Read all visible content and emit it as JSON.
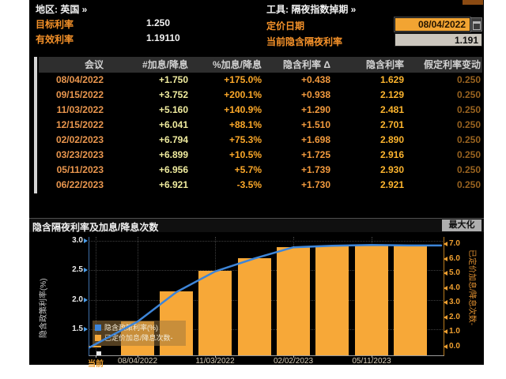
{
  "header": {
    "region": "地区: 英国 »",
    "tool": "工具: 隔夜指数掉期 »",
    "target_rate_label": "目标利率",
    "target_rate_value": "1.250",
    "effective_rate_label": "有效利率",
    "effective_rate_value": "1.19110",
    "pricing_date_label": "定价日期",
    "pricing_date_value": "08/04/2022",
    "calendar_icon": "calendar-icon",
    "current_implied_label": "当前隐含隔夜利率",
    "current_implied_value": "1.191"
  },
  "table": {
    "columns": [
      "会议",
      "#加息/降息",
      "%加息/降息",
      "隐含利率 Δ",
      "隐含利率",
      "假定利率变动"
    ],
    "rows": [
      [
        "08/04/2022",
        "+1.750",
        "+175.0%",
        "+0.438",
        "1.629",
        "0.250"
      ],
      [
        "09/15/2022",
        "+3.752",
        "+200.1%",
        "+0.938",
        "2.129",
        "0.250"
      ],
      [
        "11/03/2022",
        "+5.160",
        "+140.9%",
        "+1.290",
        "2.481",
        "0.250"
      ],
      [
        "12/15/2022",
        "+6.041",
        "+88.1%",
        "+1.510",
        "2.701",
        "0.250"
      ],
      [
        "02/02/2023",
        "+6.794",
        "+75.3%",
        "+1.698",
        "2.890",
        "0.250"
      ],
      [
        "03/23/2023",
        "+6.899",
        "+10.5%",
        "+1.725",
        "2.916",
        "0.250"
      ],
      [
        "05/11/2023",
        "+6.956",
        "+5.7%",
        "+1.739",
        "2.930",
        "0.250"
      ],
      [
        "06/22/2023",
        "+6.921",
        "-3.5%",
        "+1.730",
        "2.921",
        "0.250"
      ]
    ]
  },
  "chart": {
    "title": "隐含隔夜利率及加息/降息次数",
    "maximize_label": "最大化",
    "left_axis_label": "隐含政策利率(%)",
    "right_axis_label": "已定价加息/降息次数-",
    "legend": [
      {
        "label": "隐含政策利率(%)",
        "color": "#3d85d8"
      },
      {
        "label": "已定价加息/降息次数-",
        "color": "#f7a838"
      }
    ],
    "chart_data": {
      "type": "bar+line",
      "x": [
        "当前",
        "08/04/2022",
        "09/15/2022",
        "11/03/2022",
        "12/15/2022",
        "02/02/2023",
        "03/23/2023",
        "05/11/2023",
        "06/22/2023"
      ],
      "series": [
        {
          "name": "隐含政策利率(%)",
          "type": "line",
          "axis": "left",
          "values": [
            1.191,
            1.629,
            2.129,
            2.481,
            2.701,
            2.89,
            2.916,
            2.93,
            2.921
          ]
        },
        {
          "name": "已定价加息/降息次数",
          "type": "bar",
          "axis": "right",
          "values": [
            0.0,
            1.75,
            3.752,
            5.16,
            6.041,
            6.794,
            6.899,
            6.956,
            6.921
          ]
        }
      ],
      "left_ticks": [
        "3.0",
        "2.5",
        "2.0",
        "1.5"
      ],
      "right_ticks": [
        "7.0",
        "6.0",
        "5.0",
        "4.0",
        "3.0",
        "2.0",
        "1.0",
        "0.0"
      ],
      "x_tick_labels": [
        "当前",
        "08/04/2022",
        "11/03/2022",
        "02/02/2023",
        "05/11/2023"
      ],
      "left_range": [
        1.18,
        3.0
      ],
      "right_range": [
        0.0,
        7.0
      ],
      "grid": "dotted",
      "legend_position": "bottom-left",
      "colors": {
        "line": "#3d85d8",
        "bar": "#f7a838"
      }
    }
  }
}
